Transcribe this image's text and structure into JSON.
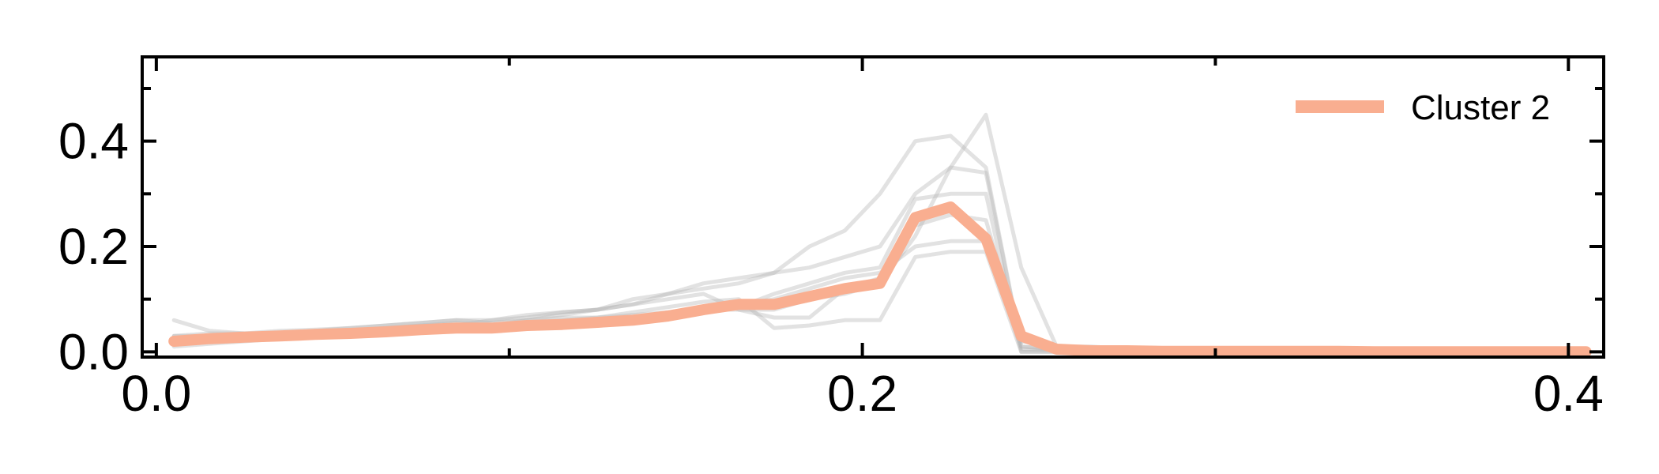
{
  "chart_data": {
    "type": "line",
    "title": "",
    "xlabel": "",
    "ylabel": "",
    "xlim": [
      -0.004,
      0.41
    ],
    "ylim": [
      -0.01,
      0.56
    ],
    "grid": false,
    "legend": {
      "placement": "top-right",
      "entries": [
        "Cluster 2"
      ]
    },
    "x_ticks": [
      0.0,
      0.2,
      0.4
    ],
    "x_tick_labels": [
      "0.0",
      "0.2",
      "0.4"
    ],
    "x_minor_ticks": [
      0.1,
      0.3
    ],
    "y_ticks": [
      0.0,
      0.2,
      0.4
    ],
    "y_tick_labels": [
      "0.0",
      "0.2",
      "0.4"
    ],
    "y_minor_ticks": [
      0.1,
      0.3,
      0.5
    ],
    "colors": {
      "mean": "#f9ae90",
      "background": "#b4b4b4",
      "axis": "#000000"
    },
    "x": [
      0.005,
      0.015,
      0.025,
      0.035,
      0.045,
      0.055,
      0.065,
      0.075,
      0.085,
      0.095,
      0.105,
      0.115,
      0.125,
      0.135,
      0.145,
      0.155,
      0.165,
      0.175,
      0.185,
      0.195,
      0.205,
      0.215,
      0.225,
      0.235,
      0.245,
      0.255,
      0.265,
      0.275,
      0.285,
      0.295,
      0.305,
      0.315,
      0.325,
      0.335,
      0.345,
      0.355,
      0.365,
      0.375,
      0.385,
      0.395,
      0.405
    ],
    "series": [
      {
        "name": "Cluster 2",
        "role": "mean",
        "values": [
          0.02,
          0.025,
          0.028,
          0.03,
          0.033,
          0.035,
          0.038,
          0.042,
          0.045,
          0.045,
          0.05,
          0.052,
          0.056,
          0.06,
          0.068,
          0.08,
          0.09,
          0.09,
          0.105,
          0.12,
          0.13,
          0.255,
          0.275,
          0.215,
          0.03,
          0.005,
          0.002,
          0.002,
          0.001,
          0.001,
          0.001,
          0.001,
          0.001,
          0.001,
          0.0,
          0.0,
          0.0,
          0.0,
          0.0,
          0.0,
          0.0
        ]
      },
      {
        "role": "member",
        "values": [
          0.06,
          0.04,
          0.035,
          0.04,
          0.042,
          0.045,
          0.05,
          0.055,
          0.06,
          0.06,
          0.065,
          0.075,
          0.08,
          0.09,
          0.11,
          0.12,
          0.13,
          0.15,
          0.2,
          0.23,
          0.3,
          0.4,
          0.41,
          0.35,
          0.01,
          0.005,
          0.005,
          0.005,
          0.002,
          0.001,
          0.001,
          0.001,
          0.001,
          0.0,
          0.0,
          0.0,
          0.0,
          0.0,
          0.0,
          0.0,
          0.0
        ]
      },
      {
        "role": "member",
        "values": [
          0.01,
          0.015,
          0.02,
          0.025,
          0.028,
          0.03,
          0.035,
          0.04,
          0.045,
          0.05,
          0.06,
          0.07,
          0.08,
          0.1,
          0.11,
          0.13,
          0.14,
          0.15,
          0.16,
          0.18,
          0.2,
          0.3,
          0.35,
          0.45,
          0.16,
          0.01,
          0.005,
          0.003,
          0.002,
          0.001,
          0.001,
          0.001,
          0.0,
          0.0,
          0.0,
          0.0,
          0.0,
          0.0,
          0.0,
          0.0,
          0.0
        ]
      },
      {
        "role": "member",
        "values": [
          0.03,
          0.03,
          0.03,
          0.032,
          0.035,
          0.04,
          0.045,
          0.05,
          0.055,
          0.05,
          0.055,
          0.06,
          0.065,
          0.07,
          0.075,
          0.08,
          0.085,
          0.11,
          0.13,
          0.15,
          0.16,
          0.29,
          0.3,
          0.3,
          0.0,
          0.0,
          0.0,
          0.0,
          0.0,
          0.0,
          0.0,
          0.0,
          0.0,
          0.0,
          0.0,
          0.0,
          0.0,
          0.0,
          0.0,
          0.0,
          0.0
        ]
      },
      {
        "role": "member",
        "values": [
          0.02,
          0.025,
          0.025,
          0.03,
          0.03,
          0.035,
          0.04,
          0.04,
          0.045,
          0.05,
          0.05,
          0.055,
          0.06,
          0.065,
          0.075,
          0.085,
          0.09,
          0.1,
          0.12,
          0.14,
          0.15,
          0.2,
          0.21,
          0.21,
          0.005,
          0.003,
          0.002,
          0.001,
          0.0,
          0.0,
          0.0,
          0.0,
          0.0,
          0.0,
          0.0,
          0.0,
          0.0,
          0.0,
          0.0,
          0.0,
          0.0
        ]
      },
      {
        "role": "member",
        "values": [
          0.03,
          0.035,
          0.035,
          0.035,
          0.04,
          0.045,
          0.05,
          0.055,
          0.06,
          0.055,
          0.06,
          0.065,
          0.065,
          0.075,
          0.085,
          0.095,
          0.1,
          0.045,
          0.05,
          0.06,
          0.06,
          0.18,
          0.19,
          0.19,
          0.0,
          0.0,
          0.0,
          0.0,
          0.0,
          0.0,
          0.0,
          0.0,
          0.0,
          0.0,
          0.0,
          0.0,
          0.0,
          0.0,
          0.0,
          0.0,
          0.0
        ]
      },
      {
        "role": "member",
        "values": [
          0.02,
          0.02,
          0.025,
          0.028,
          0.032,
          0.035,
          0.04,
          0.045,
          0.045,
          0.04,
          0.045,
          0.05,
          0.055,
          0.06,
          0.07,
          0.08,
          0.08,
          0.08,
          0.1,
          0.11,
          0.13,
          0.22,
          0.35,
          0.34,
          0.01,
          0.005,
          0.003,
          0.001,
          0.001,
          0.0,
          0.0,
          0.0,
          0.0,
          0.0,
          0.0,
          0.0,
          0.0,
          0.0,
          0.0,
          0.0,
          0.0
        ]
      },
      {
        "role": "member",
        "values": [
          0.015,
          0.02,
          0.025,
          0.03,
          0.03,
          0.035,
          0.04,
          0.045,
          0.05,
          0.06,
          0.07,
          0.075,
          0.08,
          0.09,
          0.1,
          0.11,
          0.08,
          0.065,
          0.065,
          0.12,
          0.14,
          0.24,
          0.26,
          0.25,
          0.02,
          0.01,
          0.01,
          0.005,
          0.002,
          0.001,
          0.001,
          0.0,
          0.0,
          0.0,
          0.0,
          0.0,
          0.0,
          0.0,
          0.0,
          0.0,
          0.0
        ]
      }
    ]
  }
}
